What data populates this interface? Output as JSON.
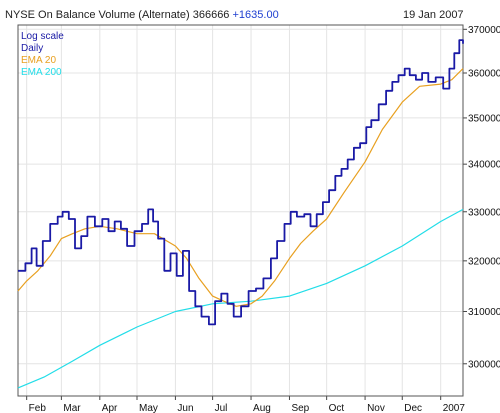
{
  "header": {
    "title": "NYSE On Balance Volume (Alternate)",
    "last_value": "366666",
    "change": "+1635.00",
    "date": "19 Jan 2007"
  },
  "legend": [
    {
      "label": "Log scale",
      "color": "#1a1aa6"
    },
    {
      "label": "Daily",
      "color": "#1a1aa6"
    },
    {
      "label": "EMA 20",
      "color": "#e8a020"
    },
    {
      "label": "EMA 200",
      "color": "#22dde8"
    }
  ],
  "chart_data": {
    "type": "line",
    "title": "NYSE On Balance Volume (Alternate)",
    "y_scale": "log",
    "ylim": [
      294000,
      371000
    ],
    "y_ticks": [
      {
        "label": "300000",
        "value": 300000
      },
      {
        "label": "310000",
        "value": 310000
      },
      {
        "label": "320000",
        "value": 320000
      },
      {
        "label": "330000",
        "value": 330000
      },
      {
        "label": "340000",
        "value": 340000
      },
      {
        "label": "350000",
        "value": 350000
      },
      {
        "label": "360000",
        "value": 360000
      },
      {
        "label": "370000",
        "value": 370000
      }
    ],
    "x_range": [
      "2006-01-25",
      "2007-01-19"
    ],
    "x_ticks": [
      {
        "label": "Feb",
        "date": "2006-02-01"
      },
      {
        "label": "Mar",
        "date": "2006-03-01"
      },
      {
        "label": "Apr",
        "date": "2006-04-01"
      },
      {
        "label": "May",
        "date": "2006-05-01"
      },
      {
        "label": "Jun",
        "date": "2006-06-01"
      },
      {
        "label": "Jul",
        "date": "2006-07-01"
      },
      {
        "label": "Aug",
        "date": "2006-08-01"
      },
      {
        "label": "Sep",
        "date": "2006-09-01"
      },
      {
        "label": "Oct",
        "date": "2006-10-01"
      },
      {
        "label": "Nov",
        "date": "2006-11-01"
      },
      {
        "label": "Dec",
        "date": "2006-12-01"
      },
      {
        "label": "2007",
        "date": "2007-01-01"
      }
    ],
    "grid": true,
    "series": [
      {
        "name": "Daily",
        "color": "#1a1aa6",
        "points": [
          [
            "2006-01-25",
            318000
          ],
          [
            "2006-01-31",
            319500
          ],
          [
            "2006-02-05",
            322500
          ],
          [
            "2006-02-09",
            319000
          ],
          [
            "2006-02-14",
            324000
          ],
          [
            "2006-02-20",
            327500
          ],
          [
            "2006-02-26",
            329000
          ],
          [
            "2006-03-02",
            330000
          ],
          [
            "2006-03-07",
            328500
          ],
          [
            "2006-03-12",
            322500
          ],
          [
            "2006-03-17",
            325000
          ],
          [
            "2006-03-22",
            329000
          ],
          [
            "2006-03-28",
            327000
          ],
          [
            "2006-04-03",
            328500
          ],
          [
            "2006-04-08",
            326000
          ],
          [
            "2006-04-13",
            328000
          ],
          [
            "2006-04-18",
            326500
          ],
          [
            "2006-04-23",
            323000
          ],
          [
            "2006-04-29",
            326000
          ],
          [
            "2006-05-05",
            327500
          ],
          [
            "2006-05-10",
            330500
          ],
          [
            "2006-05-14",
            328000
          ],
          [
            "2006-05-18",
            324500
          ],
          [
            "2006-05-23",
            318000
          ],
          [
            "2006-05-28",
            321500
          ],
          [
            "2006-06-02",
            317000
          ],
          [
            "2006-06-07",
            322000
          ],
          [
            "2006-06-12",
            314000
          ],
          [
            "2006-06-17",
            311000
          ],
          [
            "2006-06-22",
            309000
          ],
          [
            "2006-06-28",
            307500
          ],
          [
            "2006-07-03",
            312000
          ],
          [
            "2006-07-08",
            313500
          ],
          [
            "2006-07-13",
            311500
          ],
          [
            "2006-07-18",
            309000
          ],
          [
            "2006-07-24",
            311000
          ],
          [
            "2006-07-30",
            314000
          ],
          [
            "2006-08-05",
            314500
          ],
          [
            "2006-08-11",
            316500
          ],
          [
            "2006-08-17",
            320500
          ],
          [
            "2006-08-22",
            324000
          ],
          [
            "2006-08-28",
            327500
          ],
          [
            "2006-09-02",
            330000
          ],
          [
            "2006-09-07",
            329000
          ],
          [
            "2006-09-13",
            329500
          ],
          [
            "2006-09-18",
            327000
          ],
          [
            "2006-09-23",
            329500
          ],
          [
            "2006-09-28",
            332000
          ],
          [
            "2006-10-03",
            334500
          ],
          [
            "2006-10-08",
            337500
          ],
          [
            "2006-10-13",
            339000
          ],
          [
            "2006-10-18",
            341000
          ],
          [
            "2006-10-23",
            343500
          ],
          [
            "2006-10-28",
            344500
          ],
          [
            "2006-11-02",
            348000
          ],
          [
            "2006-11-06",
            349500
          ],
          [
            "2006-11-12",
            353000
          ],
          [
            "2006-11-18",
            356000
          ],
          [
            "2006-11-23",
            358000
          ],
          [
            "2006-11-28",
            359500
          ],
          [
            "2006-12-03",
            361000
          ],
          [
            "2006-12-07",
            359500
          ],
          [
            "2006-12-12",
            358500
          ],
          [
            "2006-12-17",
            360000
          ],
          [
            "2006-12-22",
            358000
          ],
          [
            "2006-12-28",
            359000
          ],
          [
            "2007-01-03",
            356500
          ],
          [
            "2007-01-08",
            361000
          ],
          [
            "2007-01-12",
            364500
          ],
          [
            "2007-01-16",
            367500
          ],
          [
            "2007-01-19",
            366666
          ]
        ]
      },
      {
        "name": "EMA 20",
        "color": "#e8a020",
        "points": [
          [
            "2006-01-25",
            314000
          ],
          [
            "2006-02-01",
            316000
          ],
          [
            "2006-02-10",
            318000
          ],
          [
            "2006-02-20",
            321000
          ],
          [
            "2006-03-01",
            324500
          ],
          [
            "2006-03-10",
            325500
          ],
          [
            "2006-03-20",
            326500
          ],
          [
            "2006-04-01",
            327000
          ],
          [
            "2006-04-15",
            326500
          ],
          [
            "2006-05-01",
            325500
          ],
          [
            "2006-05-15",
            325500
          ],
          [
            "2006-06-01",
            323000
          ],
          [
            "2006-06-10",
            320500
          ],
          [
            "2006-06-20",
            316500
          ],
          [
            "2006-07-01",
            313000
          ],
          [
            "2006-07-10",
            312000
          ],
          [
            "2006-07-20",
            311000
          ],
          [
            "2006-08-01",
            311500
          ],
          [
            "2006-08-10",
            313000
          ],
          [
            "2006-08-20",
            316000
          ],
          [
            "2006-09-01",
            320500
          ],
          [
            "2006-09-10",
            323500
          ],
          [
            "2006-09-20",
            326000
          ],
          [
            "2006-10-01",
            328500
          ],
          [
            "2006-10-15",
            334000
          ],
          [
            "2006-11-01",
            340500
          ],
          [
            "2006-11-15",
            347500
          ],
          [
            "2006-12-01",
            353500
          ],
          [
            "2006-12-15",
            357000
          ],
          [
            "2007-01-01",
            357500
          ],
          [
            "2007-01-10",
            358500
          ],
          [
            "2007-01-19",
            361000
          ]
        ]
      },
      {
        "name": "EMA 200",
        "color": "#22dde8",
        "points": [
          [
            "2006-01-25",
            295500
          ],
          [
            "2006-02-15",
            297500
          ],
          [
            "2006-03-10",
            300500
          ],
          [
            "2006-04-01",
            303500
          ],
          [
            "2006-05-01",
            307000
          ],
          [
            "2006-06-01",
            310000
          ],
          [
            "2006-07-01",
            311500
          ],
          [
            "2006-08-01",
            312000
          ],
          [
            "2006-09-01",
            313000
          ],
          [
            "2006-10-01",
            315500
          ],
          [
            "2006-11-01",
            319000
          ],
          [
            "2006-12-01",
            323000
          ],
          [
            "2007-01-01",
            328000
          ],
          [
            "2007-01-19",
            330500
          ]
        ]
      }
    ]
  }
}
